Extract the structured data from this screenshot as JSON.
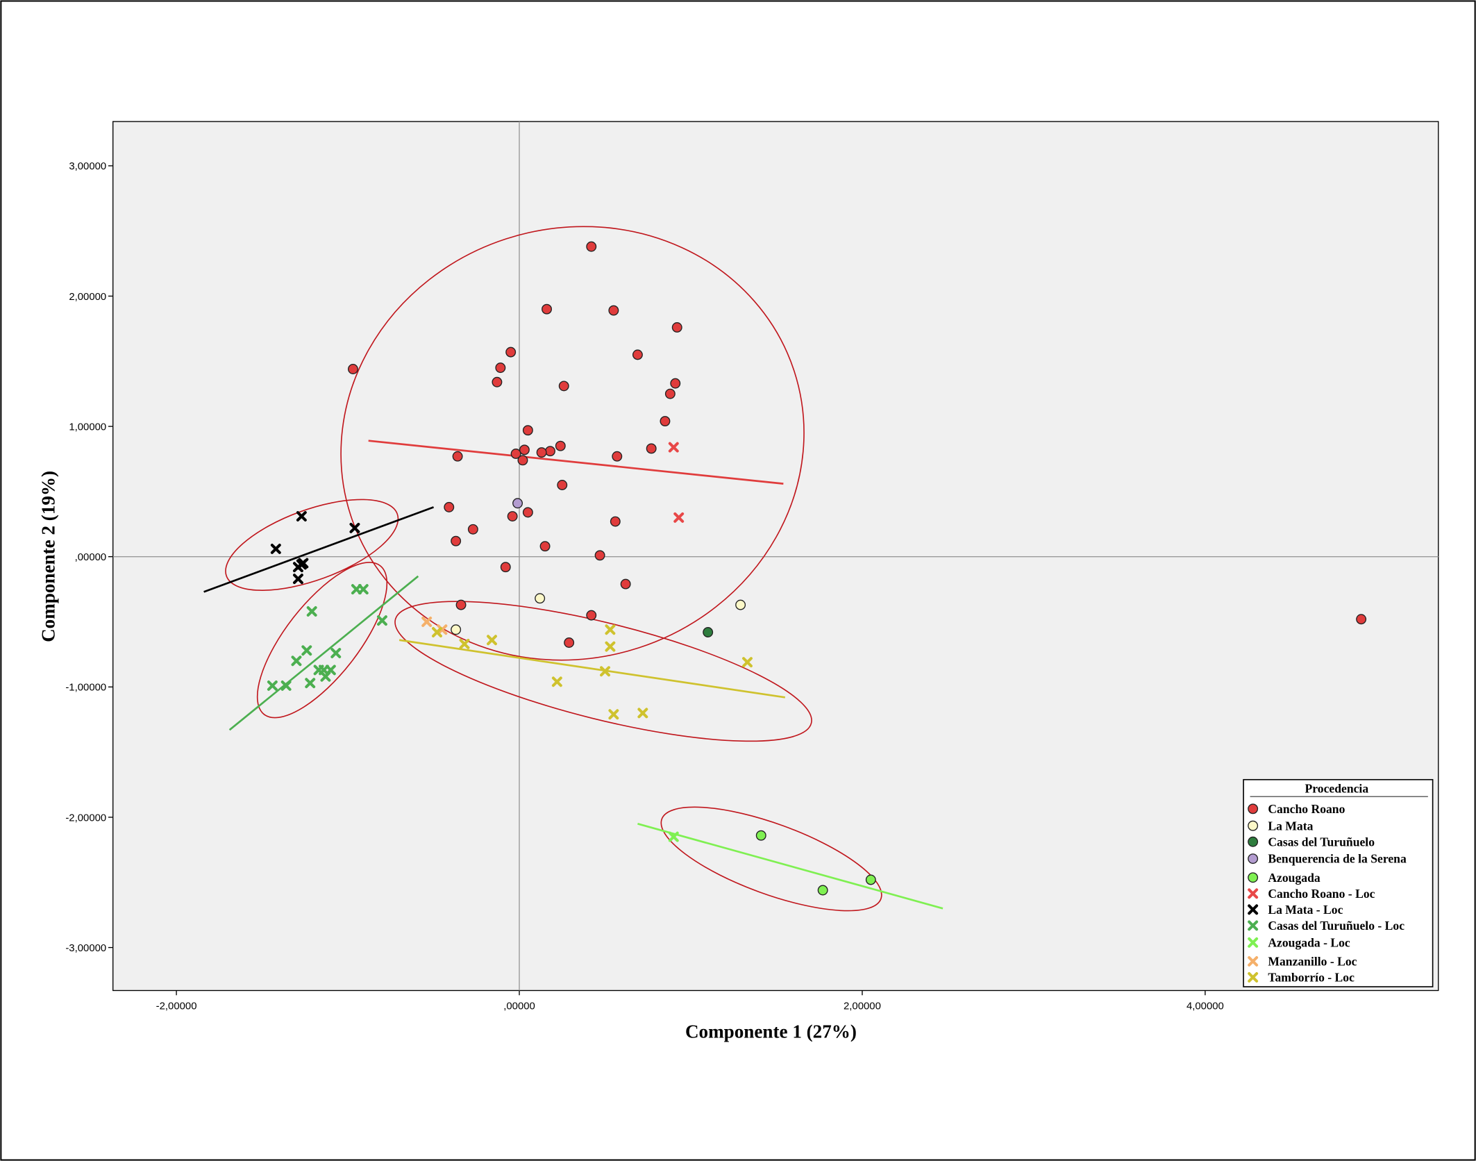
{
  "chart_data": {
    "type": "scatter",
    "title": "",
    "xlabel": "Componente 1 (27%)",
    "ylabel": "Componente 2 (19%)",
    "xlim": [
      -2.37,
      5.36
    ],
    "ylim": [
      -3.33,
      3.34
    ],
    "grid": false,
    "reference_lines": {
      "x": 0,
      "y": 0
    },
    "xticks": [
      {
        "v": -2,
        "label": "-2,00000"
      },
      {
        "v": 0,
        "label": ",00000"
      },
      {
        "v": 2,
        "label": "2,00000"
      },
      {
        "v": 4,
        "label": "4,00000"
      }
    ],
    "yticks": [
      {
        "v": 3,
        "label": "3,00000"
      },
      {
        "v": 2,
        "label": "2,00000"
      },
      {
        "v": 1,
        "label": "1,00000"
      },
      {
        "v": 0,
        "label": ",00000"
      },
      {
        "v": -1,
        "label": "-1,00000"
      },
      {
        "v": -2,
        "label": "-2,00000"
      },
      {
        "v": -3,
        "label": "-3,00000"
      }
    ],
    "legend": {
      "title": "Procedencia",
      "placement": "bottom-right"
    },
    "series": [
      {
        "name": "Cancho Roano",
        "marker": "circle",
        "color": "#e03c3c",
        "points": [
          [
            0.42,
            2.38
          ],
          [
            0.16,
            1.9
          ],
          [
            0.55,
            1.89
          ],
          [
            0.92,
            1.76
          ],
          [
            -0.05,
            1.57
          ],
          [
            0.69,
            1.55
          ],
          [
            -0.97,
            1.44
          ],
          [
            -0.11,
            1.45
          ],
          [
            -0.13,
            1.34
          ],
          [
            0.26,
            1.31
          ],
          [
            0.91,
            1.33
          ],
          [
            0.88,
            1.25
          ],
          [
            0.85,
            1.04
          ],
          [
            0.05,
            0.97
          ],
          [
            0.24,
            0.85
          ],
          [
            0.03,
            0.82
          ],
          [
            0.18,
            0.81
          ],
          [
            0.13,
            0.8
          ],
          [
            -0.02,
            0.79
          ],
          [
            0.77,
            0.83
          ],
          [
            -0.36,
            0.77
          ],
          [
            0.57,
            0.77
          ],
          [
            0.02,
            0.74
          ],
          [
            0.25,
            0.55
          ],
          [
            -0.41,
            0.38
          ],
          [
            0.05,
            0.34
          ],
          [
            -0.04,
            0.31
          ],
          [
            0.56,
            0.27
          ],
          [
            -0.27,
            0.21
          ],
          [
            -0.37,
            0.12
          ],
          [
            0.15,
            0.08
          ],
          [
            0.47,
            0.01
          ],
          [
            -0.08,
            -0.08
          ],
          [
            0.62,
            -0.21
          ],
          [
            -0.34,
            -0.37
          ],
          [
            0.42,
            -0.45
          ],
          [
            0.29,
            -0.66
          ],
          [
            4.91,
            -0.48
          ]
        ]
      },
      {
        "name": "La Mata",
        "marker": "circle",
        "color": "#fcf8c8",
        "points": [
          [
            0.12,
            -0.32
          ],
          [
            -0.37,
            -0.56
          ],
          [
            1.29,
            -0.37
          ]
        ]
      },
      {
        "name": "Casas del Turuñuelo",
        "marker": "circle",
        "color": "#2e7d3e",
        "points": [
          [
            1.1,
            -0.58
          ]
        ]
      },
      {
        "name": "Benquerencia de la Serena",
        "marker": "circle",
        "color": "#b39cd0",
        "points": [
          [
            -0.01,
            0.41
          ]
        ]
      },
      {
        "name": "Azougada",
        "marker": "circle",
        "color": "#7ff052",
        "points": [
          [
            1.41,
            -2.14
          ],
          [
            1.77,
            -2.56
          ],
          [
            2.05,
            -2.48
          ]
        ]
      },
      {
        "name": "Cancho Roano - Loc",
        "marker": "x",
        "color": "#e84848",
        "points": [
          [
            0.9,
            0.84
          ],
          [
            0.93,
            0.3
          ]
        ]
      },
      {
        "name": "La Mata - Loc",
        "marker": "x",
        "color": "#000000",
        "points": [
          [
            -1.27,
            0.31
          ],
          [
            -0.96,
            0.22
          ],
          [
            -1.42,
            0.06
          ],
          [
            -1.26,
            -0.05
          ],
          [
            -1.29,
            -0.08
          ],
          [
            -1.27,
            -0.06
          ],
          [
            -1.29,
            -0.17
          ]
        ],
        "fit": [
          [
            -1.84,
            -0.27
          ],
          [
            -0.5,
            0.38
          ]
        ]
      },
      {
        "name": "Casas del Turuñuelo - Loc",
        "marker": "x",
        "color": "#4caf50",
        "points": [
          [
            -0.95,
            -0.25
          ],
          [
            -0.91,
            -0.25
          ],
          [
            -1.21,
            -0.42
          ],
          [
            -0.8,
            -0.49
          ],
          [
            -1.24,
            -0.72
          ],
          [
            -1.07,
            -0.74
          ],
          [
            -1.3,
            -0.8
          ],
          [
            -1.17,
            -0.87
          ],
          [
            -1.14,
            -0.87
          ],
          [
            -1.1,
            -0.87
          ],
          [
            -1.13,
            -0.92
          ],
          [
            -1.44,
            -0.99
          ],
          [
            -1.36,
            -0.99
          ],
          [
            -1.22,
            -0.97
          ]
        ],
        "fit": [
          [
            -1.69,
            -1.33
          ],
          [
            -0.59,
            -0.15
          ]
        ]
      },
      {
        "name": "Azougada - Loc",
        "marker": "x",
        "color": "#7ff052",
        "points": [
          [
            0.9,
            -2.15
          ]
        ],
        "fit": [
          [
            0.69,
            -2.05
          ],
          [
            2.47,
            -2.7
          ]
        ]
      },
      {
        "name": "Manzanillo - Loc",
        "marker": "x",
        "color": "#f5b06a",
        "points": [
          [
            -0.54,
            -0.5
          ],
          [
            -0.45,
            -0.56
          ]
        ]
      },
      {
        "name": "Tamborrío - Loc",
        "marker": "x",
        "color": "#cfc22e",
        "points": [
          [
            -0.48,
            -0.58
          ],
          [
            -0.32,
            -0.67
          ],
          [
            -0.16,
            -0.64
          ],
          [
            0.53,
            -0.56
          ],
          [
            0.53,
            -0.69
          ],
          [
            0.5,
            -0.88
          ],
          [
            0.22,
            -0.96
          ],
          [
            0.55,
            -1.21
          ],
          [
            0.72,
            -1.2
          ],
          [
            1.33,
            -0.81
          ]
        ],
        "fit": [
          [
            -0.7,
            -0.64
          ],
          [
            1.55,
            -1.08
          ]
        ]
      }
    ],
    "extra_fit_lines": [
      {
        "series": "Cancho Roano",
        "color": "#e03c3c",
        "points": [
          [
            -0.88,
            0.89
          ],
          [
            1.54,
            0.56
          ]
        ]
      }
    ],
    "ellipses": [
      {
        "group": "Cancho Roano",
        "center": [
          0.31,
          0.87
        ],
        "a": 1.36,
        "b": 1.65,
        "angle": -18
      },
      {
        "group": "La Mata",
        "center": [
          -1.21,
          0.09
        ],
        "a": 0.53,
        "b": 0.27,
        "angle": -20
      },
      {
        "group": "Casas del Turuñuelo",
        "center": [
          -1.15,
          -0.64
        ],
        "a": 0.55,
        "b": 0.28,
        "angle": -52
      },
      {
        "group": "Tamborrío",
        "center": [
          0.49,
          -0.88
        ],
        "a": 1.25,
        "b": 0.37,
        "angle": 14
      },
      {
        "group": "Azougada",
        "center": [
          1.47,
          -2.32
        ],
        "a": 0.68,
        "b": 0.27,
        "angle": 20
      }
    ],
    "ellipse_color": "#c0161c"
  }
}
